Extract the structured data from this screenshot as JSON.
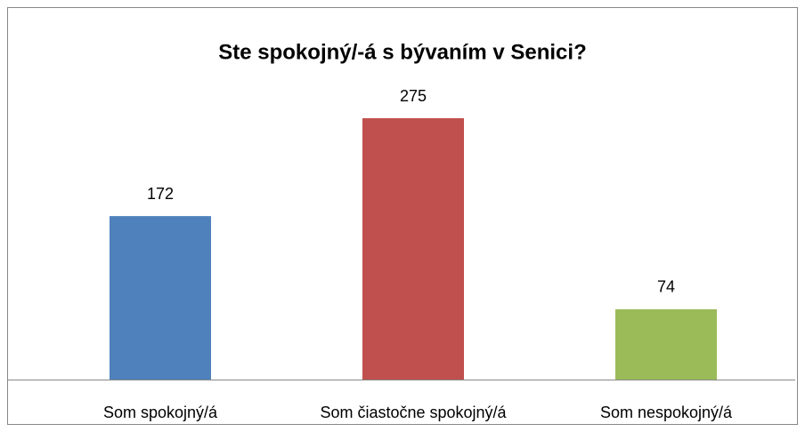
{
  "chart_data": {
    "type": "bar",
    "title": "Ste spokojný/-á s bývaním v Senici?",
    "categories": [
      "Som spokojný/á",
      "Som čiastočne spokojný/á",
      "Som nespokojný/á"
    ],
    "values": [
      172,
      275,
      74
    ],
    "colors": [
      "#4f81bd",
      "#c0504d",
      "#9bbb59"
    ]
  }
}
